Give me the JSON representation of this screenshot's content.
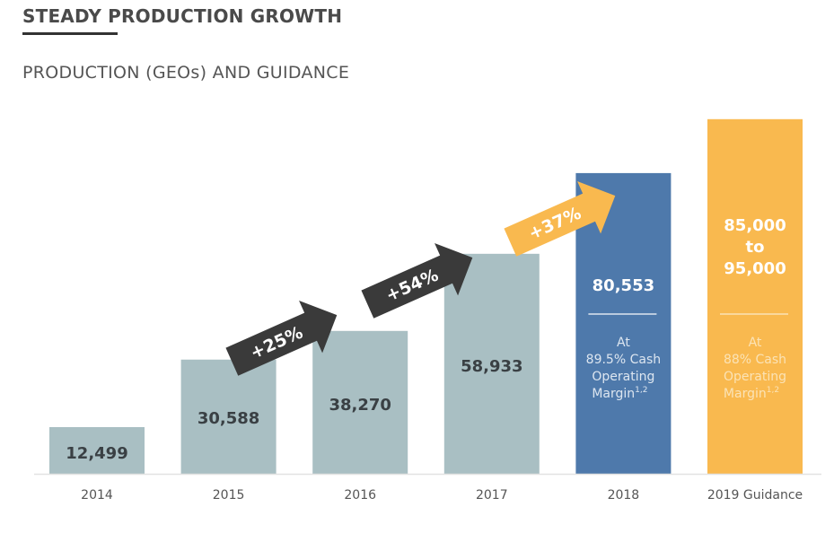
{
  "header": {
    "title": "STEADY PRODUCTION GROWTH",
    "subtitle": "PRODUCTION (GEOs) AND GUIDANCE"
  },
  "colors": {
    "historical": "#a9bfc3",
    "actual_2018": "#4e79ab",
    "guidance": "#f9b94f",
    "arrow_dark": "#3a3a3a",
    "arrow_orange": "#f9b94f",
    "value_text": "#3a4044"
  },
  "chart_data": {
    "type": "bar",
    "title": "PRODUCTION (GEOs) AND GUIDANCE",
    "xlabel": "",
    "ylabel": "GEOs",
    "ylim": [
      0,
      100000
    ],
    "grid": false,
    "categories": [
      "2014",
      "2015",
      "2016",
      "2017",
      "2018",
      "2019 Guidance"
    ],
    "values": [
      12499,
      30588,
      38270,
      58933,
      80553,
      95000
    ],
    "value_labels": [
      "12,499",
      "30,588",
      "38,270",
      "58,933",
      "80,553",
      "85,000\nto\n95,000"
    ],
    "guidance_range": [
      85000,
      95000
    ],
    "bar_colors": [
      "historical",
      "historical",
      "historical",
      "historical",
      "actual_2018",
      "guidance"
    ],
    "growth_annotations": [
      {
        "from": "2015",
        "to": "2016",
        "label": "+25%",
        "color": "arrow_dark"
      },
      {
        "from": "2016",
        "to": "2017",
        "label": "+54%",
        "color": "arrow_dark"
      },
      {
        "from": "2017",
        "to": "2018",
        "label": "+37%",
        "color": "arrow_orange"
      }
    ],
    "bar_notes": {
      "2018": [
        "At",
        "89.5% Cash",
        "Operating",
        "Margin",
        "1,2"
      ],
      "2019 Guidance": [
        "At",
        "88% Cash",
        "Operating",
        "Margin",
        "1,2"
      ]
    }
  }
}
